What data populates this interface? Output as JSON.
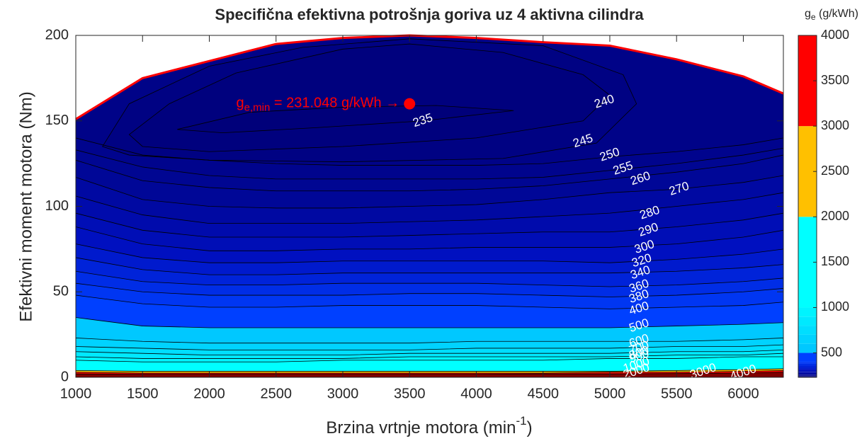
{
  "chart_data": {
    "type": "contour",
    "title": "Specifična efektivna potrošnja goriva uz 4 aktivna cilindra",
    "x_label": {
      "text": "Brzina vrtnje motora (min",
      "sup": "-1",
      "end": ")"
    },
    "y_label": "Efektivni moment motora (Nm)",
    "colorbar_label": {
      "base": "g",
      "sub": "e",
      "text": " (g/kWh)"
    },
    "xlim": [
      1000,
      6300
    ],
    "xticks": [
      1000,
      1500,
      2000,
      2500,
      3000,
      3500,
      4000,
      4500,
      5000,
      5500,
      6000
    ],
    "ylim": [
      0,
      200
    ],
    "yticks": [
      0,
      50,
      100,
      150,
      200
    ],
    "clim": [
      231.048,
      4000
    ],
    "cticks": [
      500,
      1000,
      1500,
      2000,
      2500,
      3000,
      3500,
      4000
    ],
    "colormap": [
      [
        231.048,
        "#00007a"
      ],
      [
        300,
        "#0010c0"
      ],
      [
        400,
        "#0040ff"
      ],
      [
        500,
        "#00c8ff"
      ],
      [
        1000,
        "#00ffff"
      ],
      [
        1300,
        "#30ffd0"
      ],
      [
        1700,
        "#ffff00"
      ],
      [
        2300,
        "#ff8000"
      ],
      [
        3000,
        "#ff0000"
      ],
      [
        4000,
        "#800000"
      ]
    ],
    "line_color": "#000000",
    "full_load": {
      "color": "#ff0000",
      "x": [
        1000,
        1500,
        2000,
        2500,
        3000,
        3500,
        4000,
        4500,
        5000,
        5500,
        6000,
        6300
      ],
      "y": [
        151,
        175,
        185,
        195,
        198.5,
        200,
        198.5,
        196,
        194,
        186,
        176,
        166
      ]
    },
    "grid_x": [
      1000,
      1500,
      2000,
      2500,
      3000,
      3500,
      4000,
      4500,
      5000,
      5500,
      6000,
      6300
    ],
    "contours": [
      {
        "level": 235,
        "closed": true,
        "x": [
          1760,
          2300,
          3000,
          3700,
          4280,
          3600,
          2800,
          2100
        ],
        "y": [
          145,
          155,
          158,
          159,
          156,
          150,
          146,
          143
        ]
      },
      {
        "level": 240,
        "closed": true,
        "x": [
          1400,
          1700,
          2200,
          3000,
          3500,
          4200,
          4800,
          5000,
          4800,
          4000,
          3000,
          2000,
          1500
        ],
        "y": [
          142,
          160,
          178,
          192,
          195,
          190,
          177,
          165,
          150,
          140,
          135,
          132,
          135
        ]
      },
      {
        "level": 245,
        "closed": true,
        "x": [
          1200,
          1400,
          2000,
          2700,
          3500,
          4500,
          5100,
          5200,
          4900,
          4200,
          3000,
          2000,
          1400
        ],
        "y": [
          135,
          160,
          182,
          193,
          198,
          194,
          177,
          160,
          137,
          128,
          126,
          127,
          130
        ]
      },
      {
        "level": 250,
        "closed": false,
        "y": [
          140,
          130,
          127,
          125,
          124,
          124,
          124,
          125,
          129,
          132,
          136,
          140
        ]
      },
      {
        "level": 255,
        "closed": false,
        "y": [
          133,
          123,
          118,
          116,
          116,
          116,
          116,
          117,
          121,
          125,
          130,
          134
        ]
      },
      {
        "level": 260,
        "closed": false,
        "y": [
          127,
          115,
          111,
          109,
          109,
          109,
          110,
          112,
          116,
          120,
          125,
          130
        ]
      },
      {
        "level": 270,
        "closed": false,
        "y": [
          117,
          104,
          100,
          99,
          99,
          100,
          101,
          104,
          108,
          110,
          114,
          118
        ]
      },
      {
        "level": 280,
        "closed": false,
        "y": [
          106,
          95,
          90,
          90,
          90,
          91,
          92,
          94,
          96,
          100,
          104,
          108
        ]
      },
      {
        "level": 290,
        "closed": false,
        "y": [
          96,
          86,
          82,
          82,
          82,
          83,
          84,
          85,
          85,
          88,
          92,
          96
        ]
      },
      {
        "level": 300,
        "closed": false,
        "y": [
          88,
          78,
          74,
          74,
          75,
          75,
          76,
          76,
          76,
          78,
          82,
          86
        ]
      },
      {
        "level": 320,
        "closed": false,
        "y": [
          78,
          70,
          67,
          67,
          68,
          68,
          68,
          68,
          67,
          69,
          72,
          75
        ]
      },
      {
        "level": 340,
        "closed": false,
        "y": [
          70,
          63,
          60,
          60,
          61,
          61,
          61,
          61,
          61,
          62,
          64,
          66
        ]
      },
      {
        "level": 360,
        "closed": false,
        "y": [
          62,
          56,
          54,
          54,
          55,
          55,
          55,
          54,
          53,
          54,
          56,
          58
        ]
      },
      {
        "level": 380,
        "closed": false,
        "y": [
          55,
          50,
          48,
          48,
          48,
          49,
          49,
          48,
          47,
          48,
          50,
          52
        ]
      },
      {
        "level": 400,
        "closed": false,
        "y": [
          48,
          43,
          41,
          41,
          42,
          42,
          42,
          41,
          40,
          41,
          42,
          44
        ]
      },
      {
        "level": 500,
        "closed": false,
        "y": [
          35,
          30,
          29,
          29,
          29,
          29,
          29,
          29,
          29,
          30,
          31,
          32
        ]
      },
      {
        "level": 600,
        "closed": false,
        "y": [
          23,
          21,
          20,
          20,
          20,
          20,
          21,
          21,
          21,
          21,
          22,
          23
        ]
      },
      {
        "level": 700,
        "closed": false,
        "y": [
          18,
          17,
          16,
          16,
          16,
          16,
          17,
          17,
          17,
          18,
          18,
          19
        ]
      },
      {
        "level": 800,
        "closed": false,
        "y": [
          15,
          14,
          13,
          13,
          13,
          14,
          14,
          14,
          14,
          15,
          15,
          16
        ]
      },
      {
        "level": 900,
        "closed": false,
        "y": [
          12,
          11,
          11,
          11,
          11,
          12,
          12,
          12,
          12,
          13,
          13,
          14
        ]
      },
      {
        "level": 1000,
        "closed": false,
        "y": [
          10,
          9,
          9,
          9,
          10,
          10,
          10,
          10,
          11,
          11,
          12,
          12
        ]
      },
      {
        "level": 2000,
        "closed": false,
        "y": [
          4,
          3.5,
          3.5,
          3.5,
          3.5,
          3.5,
          3.5,
          3.5,
          3.5,
          4,
          4.5,
          5
        ]
      },
      {
        "level": 3000,
        "closed": false,
        "y": [
          3,
          2.5,
          2.5,
          2.5,
          2.5,
          2.5,
          2.5,
          2.5,
          3,
          3,
          3.5,
          4
        ]
      },
      {
        "level": 4000,
        "closed": false,
        "y": [
          2,
          1.8,
          1.8,
          1.8,
          1.8,
          1.8,
          1.8,
          2,
          2,
          2.2,
          2.5,
          3
        ]
      }
    ],
    "contour_labels": [
      {
        "value": 235,
        "x": 3600,
        "y": 150
      },
      {
        "value": 240,
        "x": 4960,
        "y": 161
      },
      {
        "value": 245,
        "x": 4800,
        "y": 138
      },
      {
        "value": 250,
        "x": 5000,
        "y": 130
      },
      {
        "value": 255,
        "x": 5100,
        "y": 122
      },
      {
        "value": 260,
        "x": 5230,
        "y": 116
      },
      {
        "value": 270,
        "x": 5520,
        "y": 110
      },
      {
        "value": 280,
        "x": 5300,
        "y": 96
      },
      {
        "value": 290,
        "x": 5290,
        "y": 86
      },
      {
        "value": 300,
        "x": 5260,
        "y": 76
      },
      {
        "value": 320,
        "x": 5240,
        "y": 68
      },
      {
        "value": 340,
        "x": 5230,
        "y": 61
      },
      {
        "value": 360,
        "x": 5220,
        "y": 53
      },
      {
        "value": 380,
        "x": 5220,
        "y": 47
      },
      {
        "value": 400,
        "x": 5220,
        "y": 40
      },
      {
        "value": 500,
        "x": 5220,
        "y": 30
      },
      {
        "value": 600,
        "x": 5220,
        "y": 21
      },
      {
        "value": 700,
        "x": 5220,
        "y": 17
      },
      {
        "value": 800,
        "x": 5220,
        "y": 14
      },
      {
        "value": 900,
        "x": 5220,
        "y": 12
      },
      {
        "value": 1000,
        "x": 5200,
        "y": 7
      },
      {
        "value": 2000,
        "x": 5200,
        "y": 3.3
      },
      {
        "value": 3000,
        "x": 5700,
        "y": 3.3
      },
      {
        "value": 4000,
        "x": 6000,
        "y": 2.5
      }
    ],
    "min_point": {
      "x": 3500,
      "y": 160,
      "color": "#ff0000"
    },
    "annotation": {
      "base": "g",
      "sub": "e,min",
      "text": " = 231.048 g/kWh →"
    }
  }
}
